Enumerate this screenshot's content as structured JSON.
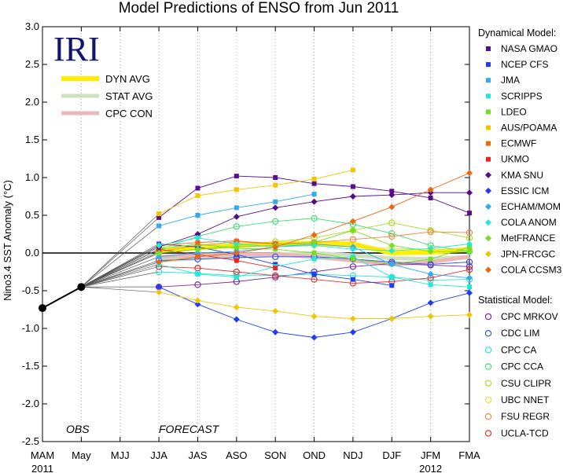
{
  "chart_data": {
    "type": "line",
    "title": "Model Predictions of ENSO from Jun 2011",
    "ylabel": "Nino3.4 SST Anomaly (°C)",
    "xlabel": "",
    "ylim": [
      -2.5,
      3.0
    ],
    "yticks": [
      "3.0",
      "2.5",
      "2.0",
      "1.5",
      "1.0",
      "0.5",
      "0.0",
      "-0.5",
      "-1.0",
      "-1.5",
      "-2.0",
      "-2.5"
    ],
    "categories": [
      "MAM",
      "May",
      "MJJ",
      "JJA",
      "JAS",
      "ASO",
      "SON",
      "OND",
      "NDJ",
      "DJF",
      "JFM",
      "FMA"
    ],
    "year_labels": [
      {
        "label": "2011",
        "index": 0
      },
      {
        "label": "2012",
        "index": 10
      }
    ],
    "grid": "vertical dotted",
    "logo": "IRI",
    "annotations": {
      "obs": "OBS",
      "forecast": "FORECAST"
    },
    "inplot_legend": [
      {
        "label": "DYN AVG",
        "color": "#ffee00",
        "width": 6
      },
      {
        "label": "STAT AVG",
        "color": "#cde0c0",
        "width": 5
      },
      {
        "label": "CPC CON",
        "color": "#eab8b8",
        "width": 5
      }
    ],
    "observed": {
      "name": "OBS",
      "color": "#000000",
      "x": [
        0,
        1
      ],
      "values": [
        -0.73,
        -0.45
      ]
    },
    "dynamical_header": "Dynamical Model:",
    "statistical_header": "Statistical Model:",
    "dynamical_models": [
      {
        "name": "NASA GMAO",
        "color": "#5b0d8f",
        "marker": "square",
        "start": 3,
        "values": [
          0.47,
          0.86,
          1.02,
          1.0,
          0.92,
          0.88,
          0.82,
          0.73,
          0.53
        ]
      },
      {
        "name": "NCEP CFS",
        "color": "#1f3cf0",
        "marker": "square",
        "start": 3,
        "values": [
          0.12,
          0.08,
          -0.02,
          -0.15,
          -0.28,
          -0.35,
          -0.43
        ]
      },
      {
        "name": "JMA",
        "color": "#33aaee",
        "marker": "square",
        "start": 3,
        "values": [
          0.36,
          0.5,
          0.6,
          0.68,
          0.78
        ]
      },
      {
        "name": "SCRIPPS",
        "color": "#22e8d8",
        "marker": "square",
        "start": 3,
        "values": [
          -0.15,
          -0.28,
          -0.32,
          -0.18,
          -0.08,
          -0.05,
          -0.32,
          -0.42,
          -0.45
        ]
      },
      {
        "name": "LDEO",
        "color": "#77dd22",
        "marker": "square",
        "start": 3,
        "values": [
          0.05,
          0.12,
          0.06,
          0.05,
          0.0,
          -0.08,
          -0.15,
          -0.08,
          0.08
        ]
      },
      {
        "name": "AUS/POAMA",
        "color": "#f5c400",
        "marker": "square",
        "start": 3,
        "values": [
          0.52,
          0.76,
          0.84,
          0.9,
          0.98,
          1.1
        ]
      },
      {
        "name": "ECMWF",
        "color": "#ee6611",
        "marker": "square",
        "start": 3,
        "values": [
          0.1,
          0.14,
          0.16,
          0.12
        ]
      },
      {
        "name": "UKMO",
        "color": "#ee2222",
        "marker": "square",
        "start": 3,
        "values": [
          0.05,
          -0.02,
          -0.1,
          -0.2
        ]
      },
      {
        "name": "KMA SNU",
        "color": "#550a8a",
        "marker": "diamond",
        "start": 3,
        "values": [
          0.08,
          0.25,
          0.48,
          0.6,
          0.68,
          0.75,
          0.77,
          0.8,
          0.8
        ]
      },
      {
        "name": "ESSIC ICM",
        "color": "#1f3cf0",
        "marker": "diamond",
        "start": 3,
        "values": [
          -0.45,
          -0.68,
          -0.88,
          -1.05,
          -1.12,
          -1.05,
          -0.87,
          -0.66,
          -0.53
        ]
      },
      {
        "name": "ECHAM/MOM",
        "color": "#33aaee",
        "marker": "diamond",
        "start": 3,
        "values": [
          -0.05,
          0.0,
          0.02,
          0.08,
          0.12,
          0.08,
          -0.15,
          -0.28,
          -0.33
        ]
      },
      {
        "name": "COLA ANOM",
        "color": "#22e8d8",
        "marker": "diamond",
        "start": 3,
        "values": [
          0.1,
          0.2,
          0.12,
          0.08,
          0.1,
          0.05,
          0.03,
          0.06,
          0.12
        ]
      },
      {
        "name": "MetFRANCE",
        "color": "#77dd22",
        "marker": "diamond",
        "start": 3,
        "values": [
          0.0,
          0.05,
          0.08,
          0.1,
          0.14,
          0.3,
          0.1,
          0.02,
          0.02
        ]
      },
      {
        "name": "JPN-FRCGC",
        "color": "#f5c400",
        "marker": "diamond",
        "start": 3,
        "values": [
          -0.52,
          -0.63,
          -0.72,
          -0.77,
          -0.84,
          -0.87,
          -0.87,
          -0.84,
          -0.82
        ]
      },
      {
        "name": "COLA CCSM3",
        "color": "#ee6611",
        "marker": "diamond",
        "start": 3,
        "values": [
          -0.12,
          -0.05,
          0.0,
          0.08,
          0.24,
          0.42,
          0.61,
          0.84,
          1.06
        ]
      }
    ],
    "statistical_models": [
      {
        "name": "CPC MRKOV",
        "color": "#7a2aa8",
        "start": 3,
        "values": [
          -0.45,
          -0.42,
          -0.38,
          -0.32,
          -0.25,
          -0.18,
          -0.14,
          -0.16,
          -0.18
        ]
      },
      {
        "name": "CDC LIM",
        "color": "#3355ee",
        "start": 3,
        "values": [
          -0.1,
          -0.08,
          -0.06,
          -0.05,
          -0.05,
          -0.08,
          -0.12,
          -0.15,
          -0.12
        ]
      },
      {
        "name": "CPC CA",
        "color": "#22e8d8",
        "start": 3,
        "values": [
          -0.25,
          -0.27,
          -0.3,
          -0.3,
          -0.28,
          -0.3,
          -0.32,
          -0.36,
          -0.35
        ]
      },
      {
        "name": "CPC CCA",
        "color": "#44dd77",
        "start": 3,
        "values": [
          0.05,
          0.22,
          0.35,
          0.42,
          0.46,
          0.38,
          0.26,
          0.1,
          0.02
        ]
      },
      {
        "name": "CSU CLIPR",
        "color": "#aadd22",
        "start": 3,
        "values": [
          0.0,
          0.05,
          0.1,
          0.15,
          0.2,
          0.3,
          0.4,
          0.3,
          0.2
        ]
      },
      {
        "name": "UBC NNET",
        "color": "#eedd33",
        "start": 3,
        "values": [
          0.08,
          0.1,
          0.12,
          0.1,
          0.1,
          0.08,
          0.06,
          0.05,
          0.05
        ]
      },
      {
        "name": "FSU REGR",
        "color": "#ee8844",
        "start": 3,
        "values": [
          0.02,
          0.1,
          0.15,
          0.12,
          0.14,
          0.18,
          0.22,
          0.28,
          0.27
        ]
      },
      {
        "name": "UCLA-TCD",
        "color": "#dd3333",
        "start": 3,
        "values": [
          -0.18,
          -0.2,
          -0.25,
          -0.3,
          -0.35,
          -0.4,
          -0.38,
          -0.33,
          -0.22
        ]
      }
    ],
    "averages": [
      {
        "name": "DYN AVG",
        "color": "#ffee00",
        "width": 6,
        "start": 3,
        "values": [
          0.03,
          0.07,
          0.1,
          0.12,
          0.13,
          0.12,
          0.0,
          0.01,
          0.05
        ]
      },
      {
        "name": "STAT AVG",
        "color": "#cde0c0",
        "width": 5,
        "start": 3,
        "values": [
          -0.1,
          -0.07,
          -0.05,
          -0.02,
          0.0,
          -0.03,
          -0.07,
          -0.08,
          -0.05
        ]
      },
      {
        "name": "CPC CON",
        "color": "#eab8b8",
        "width": 5,
        "start": 3,
        "values": [
          -0.05,
          -0.03,
          -0.02,
          -0.02,
          -0.05,
          -0.1,
          -0.15,
          -0.12,
          -0.05
        ]
      }
    ]
  }
}
